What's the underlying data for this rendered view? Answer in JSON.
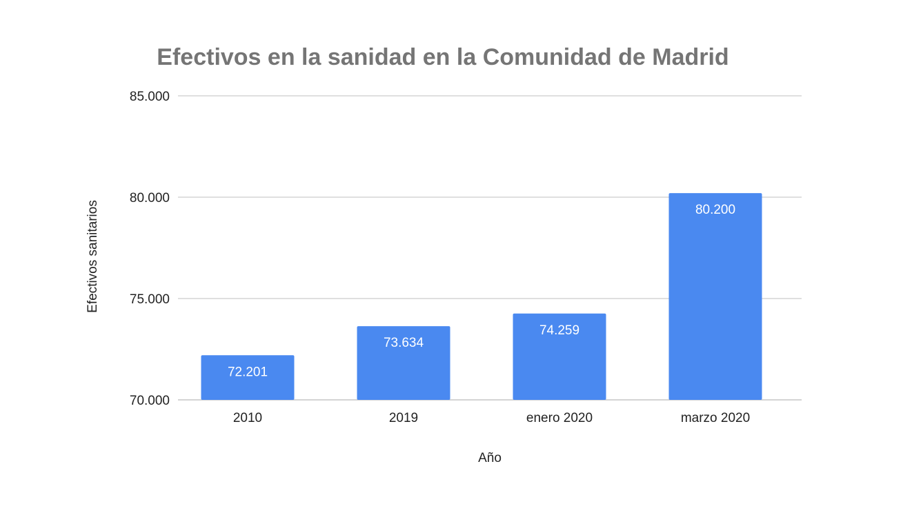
{
  "chart_data": {
    "type": "bar",
    "title": "Efectivos en la sanidad en la Comunidad de Madrid",
    "xlabel": "Año",
    "ylabel": "Efectivos sanitarios",
    "categories": [
      "2010",
      "2019",
      "enero 2020",
      "marzo 2020"
    ],
    "values": [
      72201,
      73634,
      74259,
      80200
    ],
    "data_labels": [
      "72.201",
      "73.634",
      "74.259",
      "80.200"
    ],
    "ylim": [
      70000,
      85000
    ],
    "yticks": [
      70000,
      75000,
      80000,
      85000
    ],
    "ytick_labels": [
      "70.000",
      "75.000",
      "80.000",
      "85.000"
    ],
    "grid": true,
    "legend": "none",
    "colors": {
      "bar": "#4a89f0",
      "title": "#757575",
      "grid": "#cccccc"
    }
  }
}
